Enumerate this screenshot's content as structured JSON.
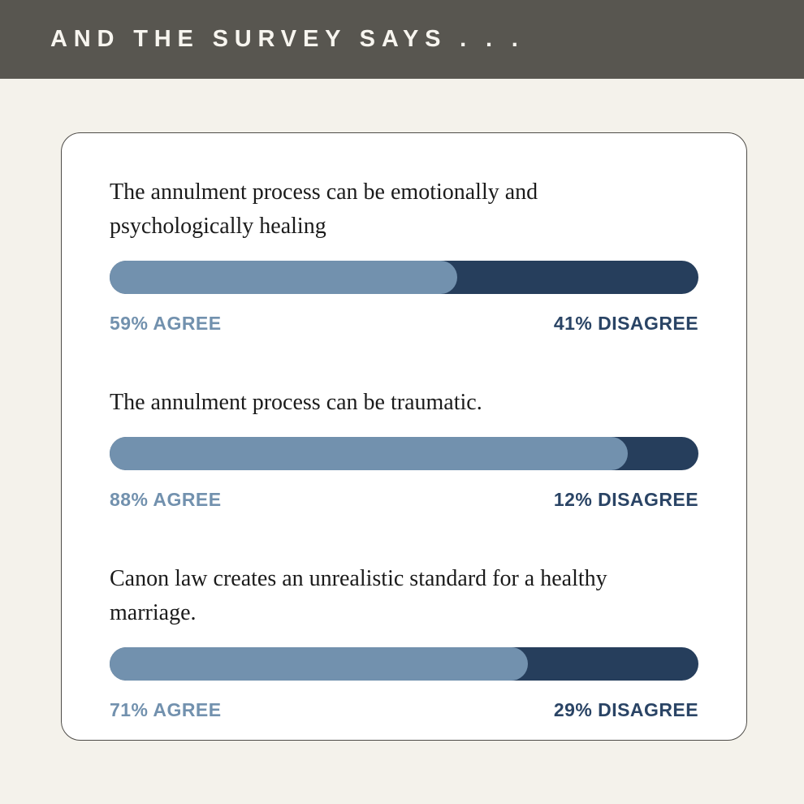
{
  "page_bg": "#F4F2EB",
  "header": {
    "title": "AND THE SURVEY SAYS . . .",
    "bg": "#585650",
    "text_color": "#F7F5EF"
  },
  "card": {
    "bg": "#FFFFFF",
    "border_color": "#4E4C48"
  },
  "colors": {
    "agree": "#7291AE",
    "disagree": "#263E5C",
    "disagree_text": "#2A4465",
    "question_text": "#1B1B1B"
  },
  "chart_data": {
    "type": "bar",
    "orientation": "horizontal",
    "stacked": true,
    "unit": "percent",
    "title": "AND THE SURVEY SAYS . . .",
    "categories": [
      "The annulment process can be emotionally and psychologically healing",
      "The annulment process can be traumatic.",
      "Canon law creates an unrealistic standard for a healthy marriage."
    ],
    "series": [
      {
        "name": "Agree",
        "color": "#7291AE",
        "values": [
          59,
          88,
          71
        ]
      },
      {
        "name": "Disagree",
        "color": "#263E5C",
        "values": [
          41,
          12,
          29
        ]
      }
    ],
    "xlim": [
      0,
      100
    ],
    "grid": false,
    "legend": "inline-labels-below-bars",
    "items": [
      {
        "question": "The annulment process can be emotionally and psychologically healing",
        "agree": 59,
        "disagree": 41,
        "agree_label": "59% AGREE",
        "disagree_label": "41% DISAGREE"
      },
      {
        "question": "The annulment process can be traumatic.",
        "agree": 88,
        "disagree": 12,
        "agree_label": "88% AGREE",
        "disagree_label": "12% DISAGREE"
      },
      {
        "question": "Canon law creates an unrealistic standard for a healthy marriage.",
        "agree": 71,
        "disagree": 29,
        "agree_label": "71% AGREE",
        "disagree_label": "29% DISAGREE"
      }
    ]
  }
}
